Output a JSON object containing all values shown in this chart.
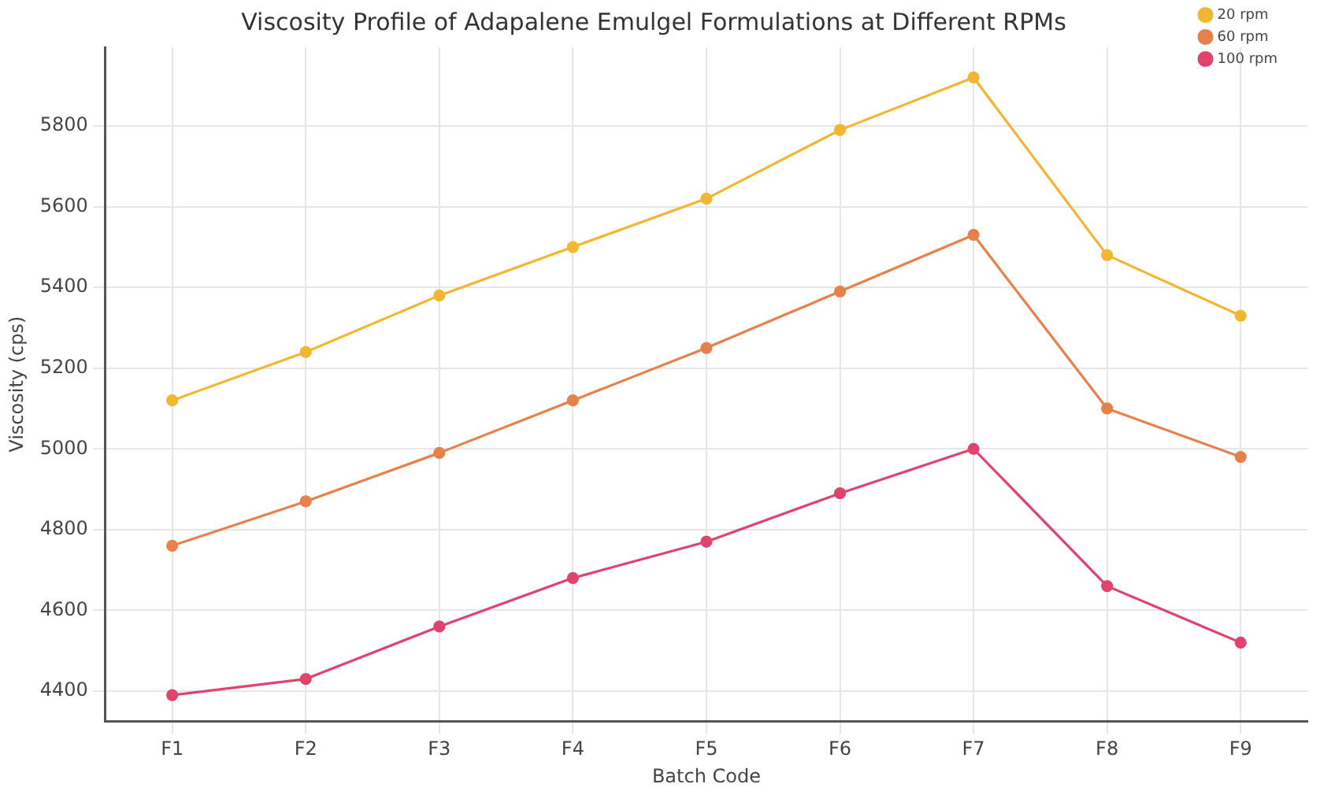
{
  "chart_data": {
    "type": "line",
    "title": "Viscosity Profile of Adapalene Emulgel Formulations at Different RPMs",
    "xlabel": "Batch Code",
    "ylabel": "Viscosity (cps)",
    "categories": [
      "F1",
      "F2",
      "F3",
      "F4",
      "F5",
      "F6",
      "F7",
      "F8",
      "F9"
    ],
    "series": [
      {
        "name": "20 rpm",
        "color": "#f2b630",
        "values": [
          5120,
          5240,
          5380,
          5500,
          5620,
          5790,
          5920,
          5480,
          5330
        ]
      },
      {
        "name": "60 rpm",
        "color": "#e8804a",
        "values": [
          4760,
          4870,
          4990,
          5120,
          5250,
          5390,
          5530,
          5100,
          4980
        ]
      },
      {
        "name": "100 rpm",
        "color": "#e0436b",
        "values": [
          4390,
          4430,
          4560,
          4680,
          4770,
          4890,
          5000,
          4660,
          4520
        ]
      }
    ],
    "ylim": [
      4325,
      5995
    ],
    "yticks": [
      4400,
      4600,
      4800,
      5000,
      5200,
      5400,
      5600,
      5800
    ],
    "grid": true,
    "legend": "top right",
    "marker": "circle",
    "line_style": "solid"
  }
}
